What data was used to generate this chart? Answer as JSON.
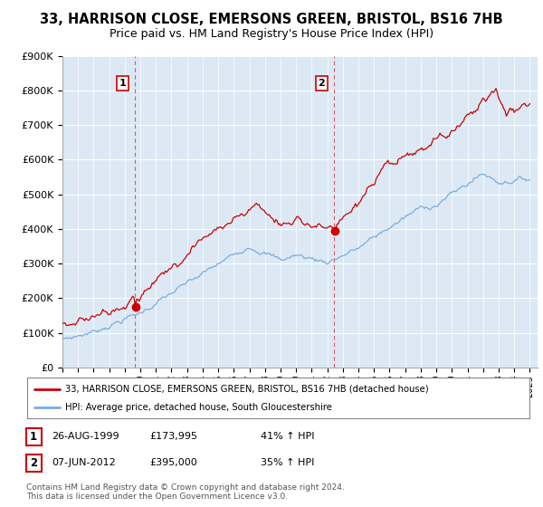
{
  "title": "33, HARRISON CLOSE, EMERSONS GREEN, BRISTOL, BS16 7HB",
  "subtitle": "Price paid vs. HM Land Registry's House Price Index (HPI)",
  "background_color": "#dce9f5",
  "line1_color": "#cc0000",
  "line2_color": "#7aaddc",
  "vline_color": "#cc0000",
  "ylim": [
    0,
    900000
  ],
  "yticks": [
    0,
    100000,
    200000,
    300000,
    400000,
    500000,
    600000,
    700000,
    800000,
    900000
  ],
  "ytick_labels": [
    "£0",
    "£100K",
    "£200K",
    "£300K",
    "£400K",
    "£500K",
    "£600K",
    "£700K",
    "£800K",
    "£900K"
  ],
  "sale1_year": 1999.65,
  "sale1_price": 173995,
  "sale2_year": 2012.43,
  "sale2_price": 395000,
  "legend_line1": "33, HARRISON CLOSE, EMERSONS GREEN, BRISTOL, BS16 7HB (detached house)",
  "legend_line2": "HPI: Average price, detached house, South Gloucestershire",
  "annotation1_date": "26-AUG-1999",
  "annotation1_price": "£173,995",
  "annotation1_hpi": "41% ↑ HPI",
  "annotation2_date": "07-JUN-2012",
  "annotation2_price": "£395,000",
  "annotation2_hpi": "35% ↑ HPI",
  "footer": "Contains HM Land Registry data © Crown copyright and database right 2024.\nThis data is licensed under the Open Government Licence v3.0."
}
